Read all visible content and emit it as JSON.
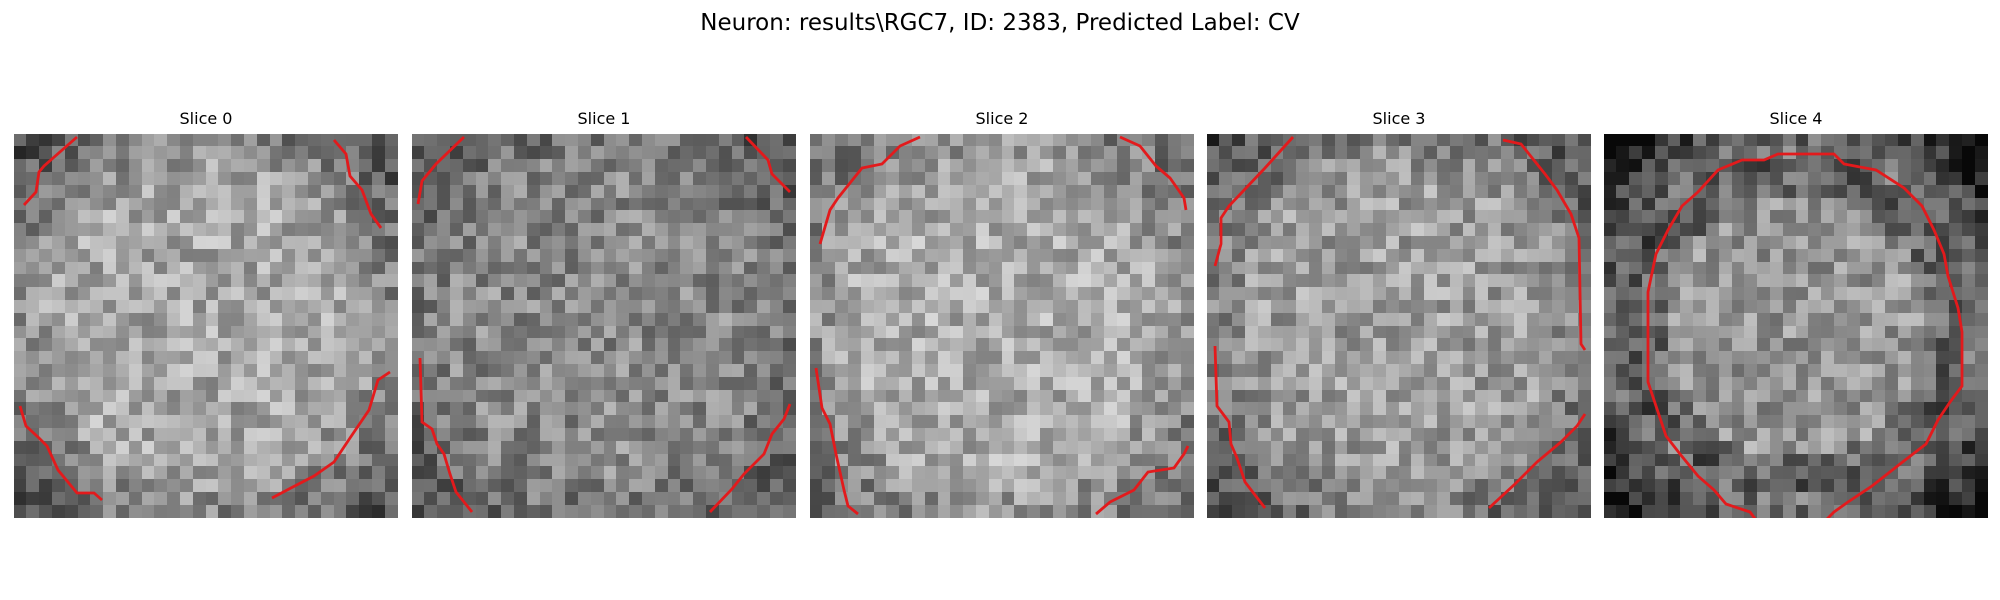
{
  "figure": {
    "title": "Neuron: results\\RGC7, ID: 2383, Predicted Label: CV"
  },
  "slices": [
    {
      "title": "Slice 0",
      "mean_intensity": 168,
      "edge_darkening": 0.28,
      "seed": 11
    },
    {
      "title": "Slice 1",
      "mean_intensity": 138,
      "edge_darkening": 0.18,
      "seed": 23
    },
    {
      "title": "Slice 2",
      "mean_intensity": 172,
      "edge_darkening": 0.22,
      "seed": 37
    },
    {
      "title": "Slice 3",
      "mean_intensity": 158,
      "edge_darkening": 0.26,
      "seed": 53
    },
    {
      "title": "Slice 4",
      "mean_intensity": 150,
      "edge_darkening": 0.42,
      "seed": 71
    }
  ],
  "colors": {
    "contour": "#e31a1c",
    "background": "#ffffff"
  },
  "image_grid": {
    "cells": 30,
    "colormap": "gray"
  }
}
